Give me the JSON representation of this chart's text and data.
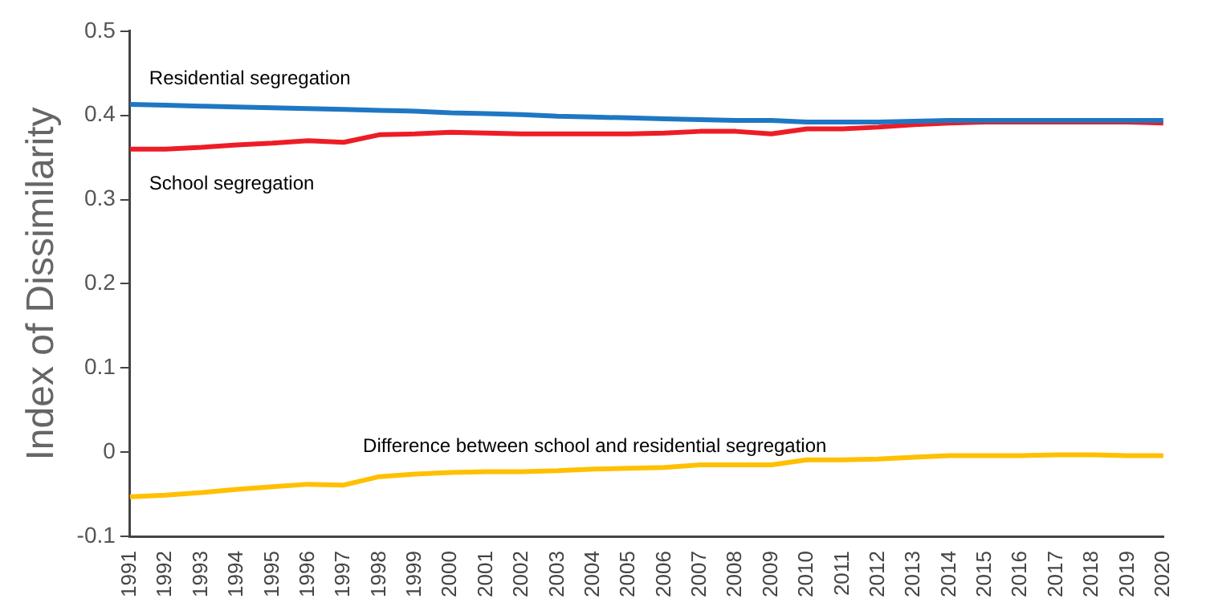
{
  "chart_data": {
    "type": "line",
    "ylabel": "Index of Dissimilarity",
    "categories": [
      "1991",
      "1992",
      "1993",
      "1994",
      "1995",
      "1996",
      "1997",
      "1998",
      "1999",
      "2000",
      "2001",
      "2002",
      "2003",
      "2004",
      "2005",
      "2006",
      "2007",
      "2008",
      "2009",
      "2010",
      "2011",
      "2012",
      "2013",
      "2014",
      "2015",
      "2016",
      "2017",
      "2018",
      "2019",
      "2020"
    ],
    "series": [
      {
        "name": "Residential segregation",
        "color": "#1f77c4",
        "values": [
          0.413,
          0.412,
          0.411,
          0.41,
          0.409,
          0.408,
          0.407,
          0.406,
          0.405,
          0.403,
          0.402,
          0.401,
          0.399,
          0.398,
          0.397,
          0.396,
          0.395,
          0.394,
          0.394,
          0.392,
          0.392,
          0.392,
          0.393,
          0.394,
          0.394,
          0.394,
          0.394,
          0.394,
          0.394,
          0.394
        ]
      },
      {
        "name": "School segregation",
        "color": "#ee1c25",
        "values": [
          0.36,
          0.36,
          0.362,
          0.365,
          0.367,
          0.37,
          0.368,
          0.377,
          0.378,
          0.38,
          0.379,
          0.378,
          0.378,
          0.378,
          0.378,
          0.379,
          0.381,
          0.381,
          0.378,
          0.384,
          0.384,
          0.386,
          0.389,
          0.391,
          0.392,
          0.392,
          0.392,
          0.392,
          0.392,
          0.391
        ]
      },
      {
        "name": "Difference between school and residential segregation",
        "color": "#ffc000",
        "values": [
          -0.053,
          -0.051,
          -0.048,
          -0.044,
          -0.041,
          -0.038,
          -0.039,
          -0.029,
          -0.026,
          -0.024,
          -0.023,
          -0.023,
          -0.022,
          -0.02,
          -0.019,
          -0.018,
          -0.015,
          -0.015,
          -0.015,
          -0.009,
          -0.009,
          -0.008,
          -0.006,
          -0.004,
          -0.004,
          -0.004,
          -0.003,
          -0.003,
          -0.004,
          -0.004
        ]
      }
    ],
    "ylim": [
      -0.1,
      0.5
    ],
    "yticks": [
      -0.1,
      0,
      0.1,
      0.2,
      0.3,
      0.4,
      0.5
    ],
    "grid": false,
    "legend": false,
    "marker": "none",
    "line_style": "solid"
  }
}
